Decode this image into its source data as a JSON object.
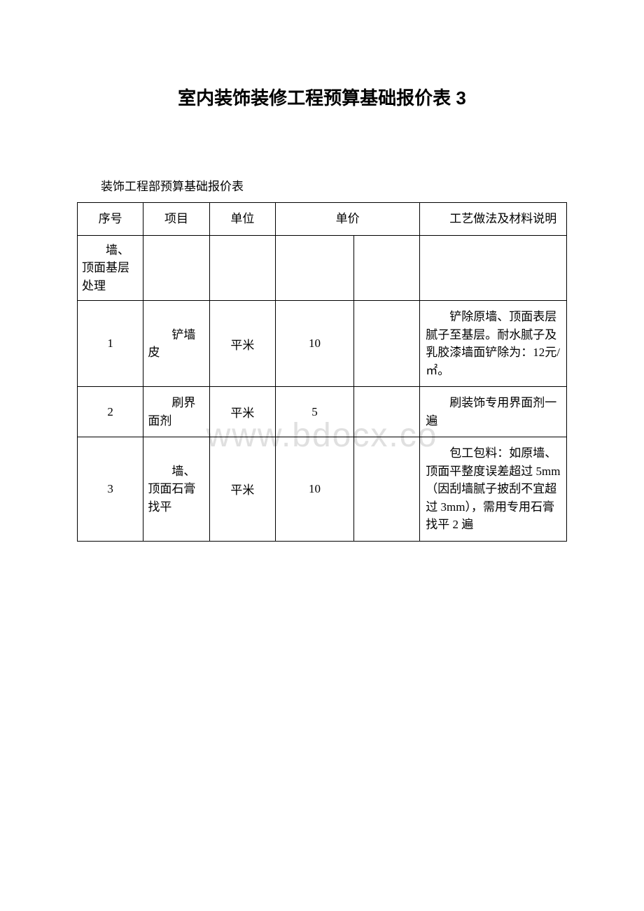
{
  "title": "室内装饰装修工程预算基础报价表 3",
  "subtitle": "装饰工程部预算基础报价表",
  "watermark": "www.bdocx.co",
  "table": {
    "headers": {
      "seq": "序号",
      "item": "项目",
      "unit": "单位",
      "price": "单价",
      "desc": "工艺做法及材料说明"
    },
    "section": "墙、顶面基层处理",
    "rows": [
      {
        "seq": "1",
        "item": "铲墙皮",
        "unit": "平米",
        "price": "10",
        "desc": "铲除原墙、顶面表层腻子至基层。耐水腻子及乳胶漆墙面铲除为：12元/㎡。"
      },
      {
        "seq": "2",
        "item": "刷界面剂",
        "unit": "平米",
        "price": "5",
        "desc": "刷装饰专用界面剂一遍"
      },
      {
        "seq": "3",
        "item": "墙、顶面石膏找平",
        "unit": "平米",
        "price": "10",
        "desc": "包工包料：如原墙、顶面平整度误差超过 5mm（因刮墙腻子披刮不宜超过 3mm），需用专用石膏找平 2 遍"
      }
    ]
  },
  "styling": {
    "background_color": "#ffffff",
    "text_color": "#000000",
    "border_color": "#000000",
    "watermark_color": "#e0e0e0",
    "title_fontsize": 26,
    "body_fontsize": 17,
    "watermark_fontsize": 48
  }
}
